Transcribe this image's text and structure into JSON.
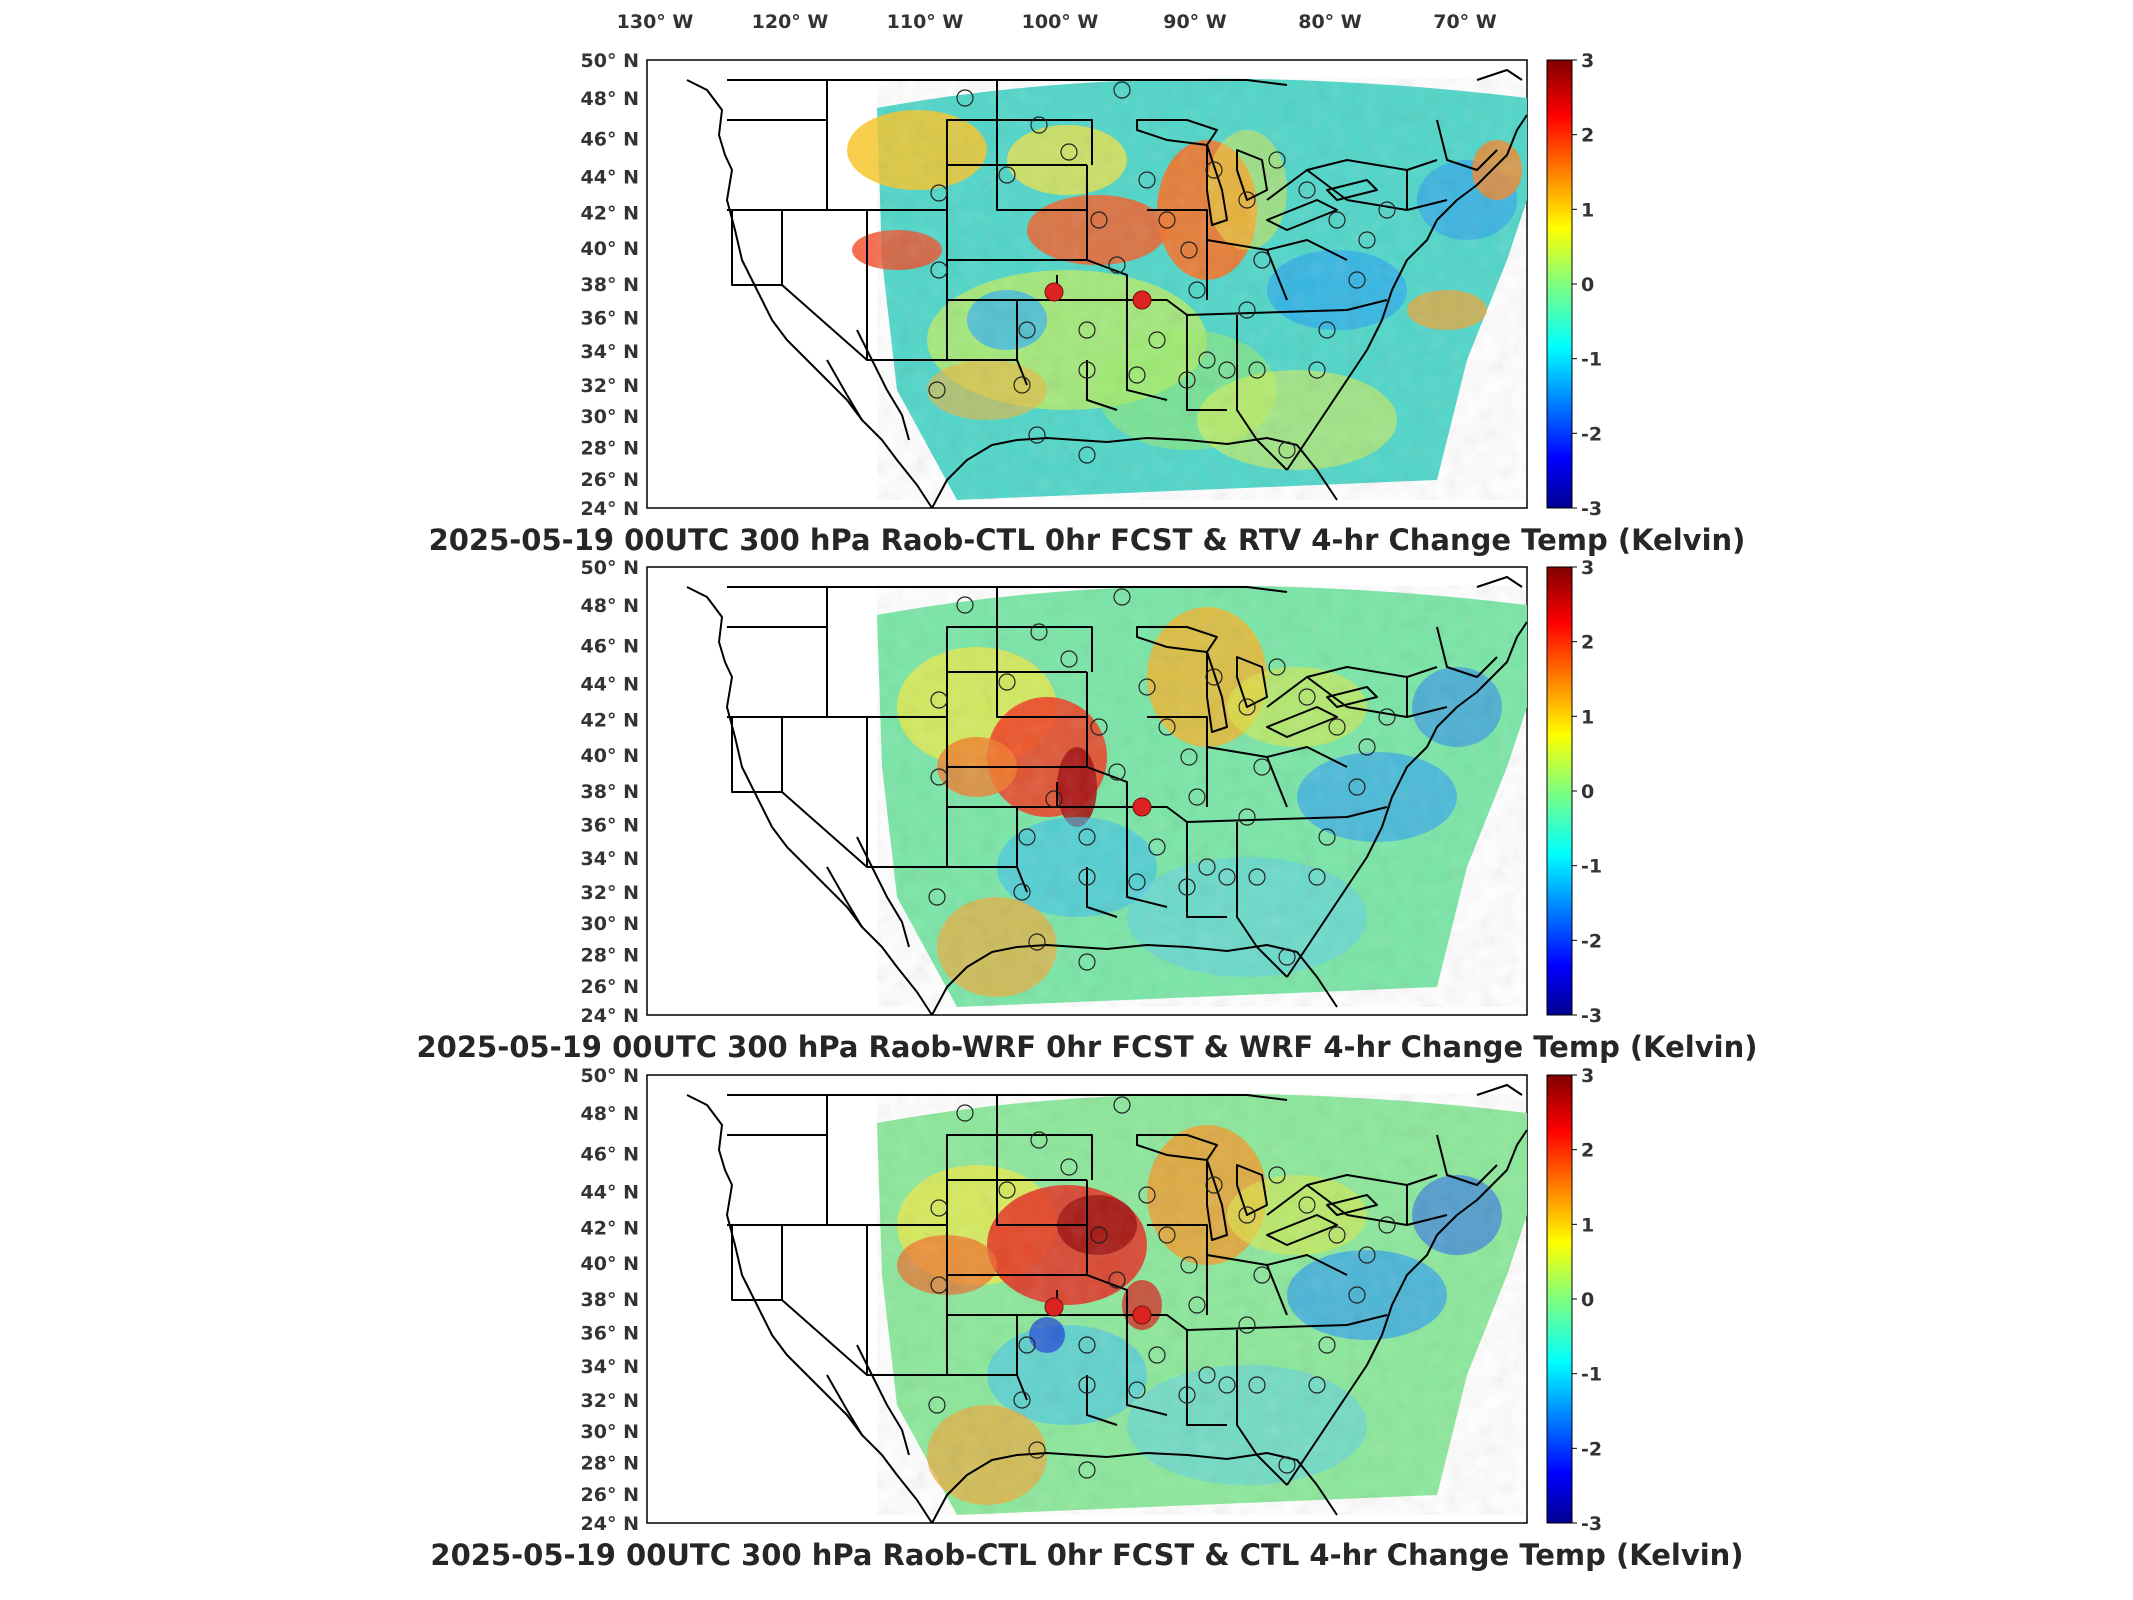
{
  "figure": {
    "longitude_labels": [
      "130",
      "120",
      "110",
      "100",
      "90",
      "80",
      "70"
    ],
    "longitude_suffix": "W",
    "latitude_labels": [
      "50",
      "48",
      "46",
      "44",
      "42",
      "40",
      "38",
      "36",
      "34",
      "32",
      "30",
      "28",
      "26",
      "24"
    ],
    "latitude_suffix": "N",
    "colorbar_ticks": [
      "3",
      "2",
      "1",
      "0",
      "-1",
      "-2",
      "-3"
    ],
    "colormap": "jet",
    "panels": [
      {
        "title": "2025-05-19 00UTC 300 hPa Raob-CTL 0hr FCST & RTV 4-hr Change Temp (Kelvin)",
        "highlighted_stations": [
          "station-1",
          "station-2"
        ]
      },
      {
        "title": "2025-05-19 00UTC 300 hPa Raob-WRF 0hr FCST & WRF 4-hr Change Temp (Kelvin)",
        "highlighted_stations": [
          "station-2"
        ]
      },
      {
        "title": "2025-05-19 00UTC 300 hPa Raob-CTL 0hr FCST & CTL 4-hr Change Temp (Kelvin)",
        "highlighted_stations": [
          "station-1",
          "station-2"
        ]
      }
    ]
  }
}
